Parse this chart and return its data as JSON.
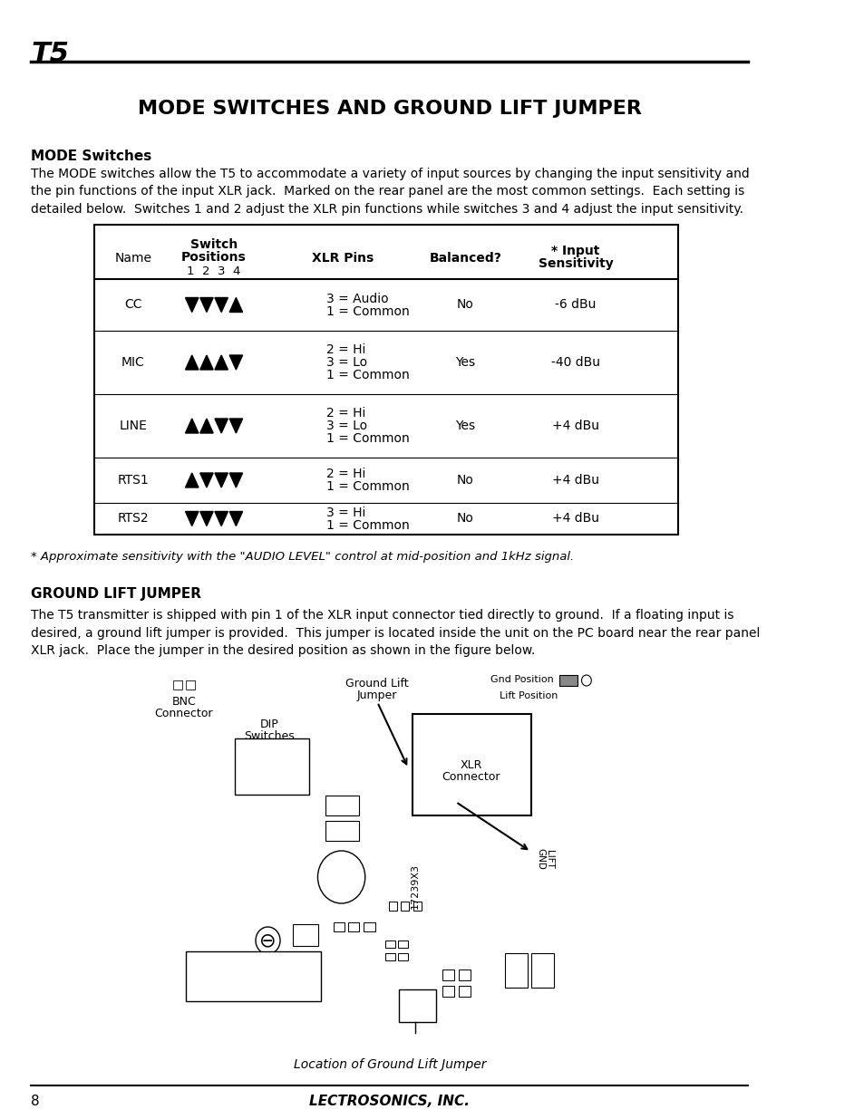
{
  "page_bg": "#ffffff",
  "title_tag": "T5",
  "main_title": "MODE SWITCHES AND GROUND LIFT JUMPER",
  "mode_switches_header": "MODE Switches",
  "mode_switches_body": "The MODE switches allow the T5 to accommodate a variety of input sources by changing the input sensitivity and\nthe pin functions of the input XLR jack.  Marked on the rear panel are the most common settings.  Each setting is\ndetailed below.  Switches 1 and 2 adjust the XLR pin functions while switches 3 and 4 adjust the input sensitivity.",
  "table_rows": [
    {
      "name": "CC",
      "symbols": [
        0,
        0,
        0,
        1
      ],
      "xlr_pins": "3 = Audio\n1 = Common",
      "balanced": "No",
      "sensitivity": "-6 dBu"
    },
    {
      "name": "MIC",
      "symbols": [
        1,
        1,
        1,
        0
      ],
      "xlr_pins": "2 = Hi\n3 = Lo\n1 = Common",
      "balanced": "Yes",
      "sensitivity": "-40 dBu"
    },
    {
      "name": "LINE",
      "symbols": [
        1,
        1,
        0,
        0
      ],
      "xlr_pins": "2 = Hi\n3 = Lo\n1 = Common",
      "balanced": "Yes",
      "sensitivity": "+4 dBu"
    },
    {
      "name": "RTS1",
      "symbols": [
        1,
        0,
        0,
        0
      ],
      "xlr_pins": "2 = Hi\n1 = Common",
      "balanced": "No",
      "sensitivity": "+4 dBu"
    },
    {
      "name": "RTS2",
      "symbols": [
        0,
        0,
        0,
        0
      ],
      "xlr_pins": "3 = Hi\n1 = Common",
      "balanced": "No",
      "sensitivity": "+4 dBu"
    }
  ],
  "footnote": "* Approximate sensitivity with the \"AUDIO LEVEL\" control at mid-position and 1kHz signal.",
  "ground_lift_header": "GROUND LIFT JUMPER",
  "ground_lift_body": "The T5 transmitter is shipped with pin 1 of the XLR input connector tied directly to ground.  If a floating input is\ndesired, a ground lift jumper is provided.  This jumper is located inside the unit on the PC board near the rear panel\nXLR jack.  Place the jumper in the desired position as shown in the figure below.",
  "figure_caption": "Location of Ground Lift Jumper",
  "page_number": "8",
  "company_name": "LECTROSONICS, INC."
}
